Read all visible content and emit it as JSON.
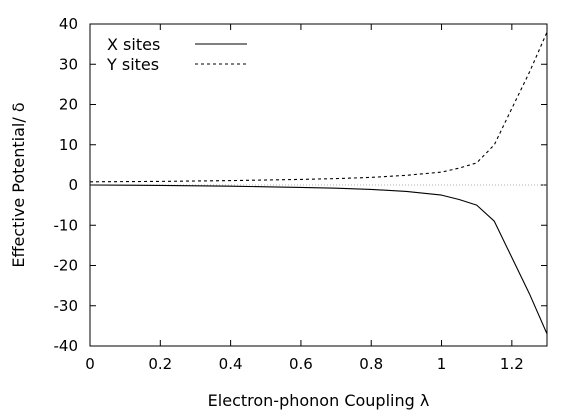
{
  "chart_data": {
    "type": "line",
    "title": "",
    "xlabel": "Electron-phonon Coupling λ",
    "ylabel": "Effective Potential/ δ",
    "xlim": [
      0,
      1.3
    ],
    "ylim": [
      -40,
      40
    ],
    "xticks": [
      0,
      0.2,
      0.4,
      0.6,
      0.8,
      1,
      1.2
    ],
    "xtick_labels": [
      "0",
      "0.2",
      "0.4",
      "0.6",
      "0.8",
      "1",
      "1.2"
    ],
    "yticks": [
      -40,
      -30,
      -20,
      -10,
      0,
      10,
      20,
      30,
      40
    ],
    "ytick_labels": [
      "-40",
      "-30",
      "-20",
      "-10",
      "0",
      "10",
      "20",
      "30",
      "40"
    ],
    "grid": false,
    "zero_line": true,
    "legend_position": "top-left",
    "series": [
      {
        "name": "X sites",
        "style": "solid",
        "color": "#000000",
        "x": [
          0,
          0.1,
          0.2,
          0.3,
          0.4,
          0.5,
          0.6,
          0.7,
          0.8,
          0.9,
          1.0,
          1.05,
          1.1,
          1.15,
          1.2,
          1.25,
          1.3
        ],
        "y": [
          0,
          -0.05,
          -0.1,
          -0.2,
          -0.3,
          -0.45,
          -0.6,
          -0.8,
          -1.1,
          -1.6,
          -2.5,
          -3.6,
          -5.0,
          -9.0,
          -18.0,
          -27.0,
          -37.0
        ]
      },
      {
        "name": "Y sites",
        "style": "dashed",
        "color": "#000000",
        "x": [
          0,
          0.1,
          0.2,
          0.3,
          0.4,
          0.5,
          0.6,
          0.7,
          0.8,
          0.9,
          1.0,
          1.05,
          1.1,
          1.15,
          1.2,
          1.25,
          1.3
        ],
        "y": [
          0.8,
          0.85,
          0.9,
          1.0,
          1.1,
          1.25,
          1.4,
          1.6,
          1.9,
          2.4,
          3.2,
          4.2,
          5.5,
          10.0,
          19.0,
          28.0,
          38.0
        ]
      }
    ]
  }
}
